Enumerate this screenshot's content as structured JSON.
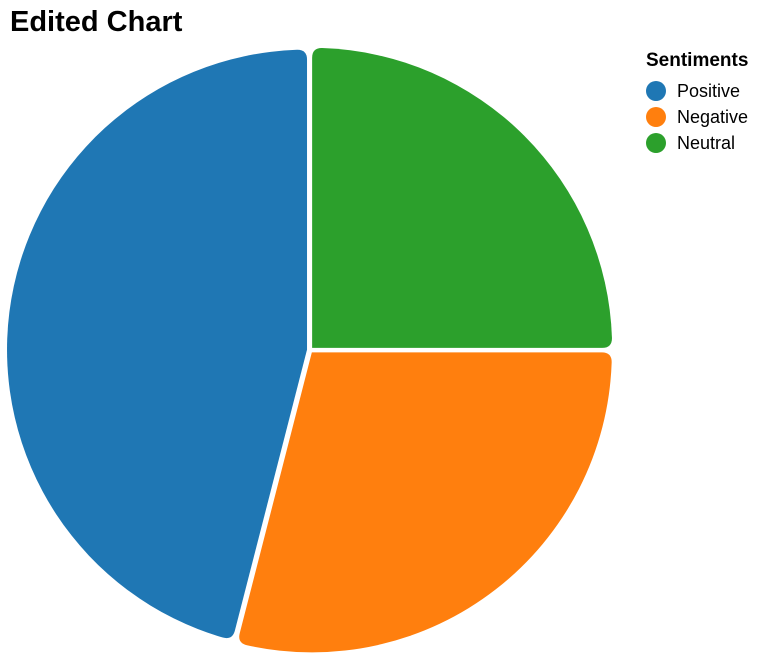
{
  "chart_data": {
    "type": "pie",
    "title": "Edited Chart",
    "legend_title": "Sentiments",
    "legend_position": "top-right",
    "categories": [
      "Positive",
      "Negative",
      "Neutral"
    ],
    "values": [
      46,
      29,
      25
    ],
    "colors": [
      "#1f77b4",
      "#ff7f0e",
      "#2ca02c"
    ],
    "grid": false
  }
}
